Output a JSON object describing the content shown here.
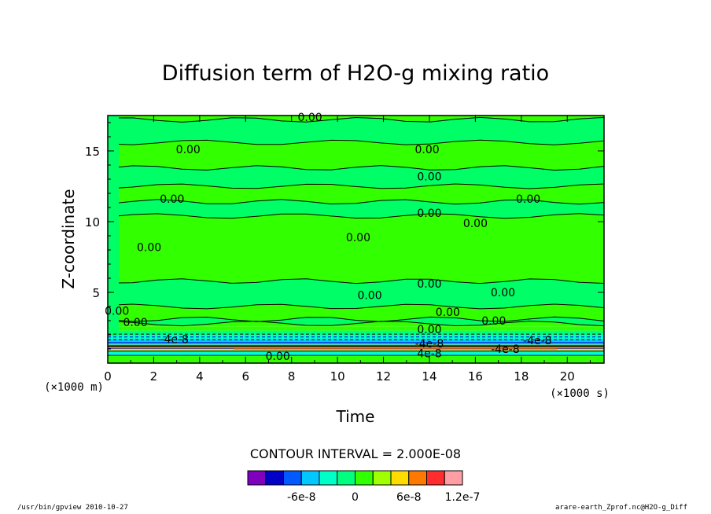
{
  "chart_data": {
    "type": "heatmap",
    "title": "Diffusion term of H2O-g mixing ratio",
    "xlabel": "Time",
    "ylabel": "Z-coordinate",
    "x_unit": "(×1000 s)",
    "y_unit": "(×1000 m)",
    "xlim": [
      0,
      21.6
    ],
    "ylim": [
      0,
      17.5
    ],
    "x_ticks": [
      "0",
      "2",
      "4",
      "6",
      "8",
      "10",
      "12",
      "14",
      "16",
      "18",
      "20"
    ],
    "x_tick_values": [
      0,
      2,
      4,
      6,
      8,
      10,
      12,
      14,
      16,
      18,
      20
    ],
    "y_ticks": [
      "5",
      "10",
      "15"
    ],
    "y_tick_values": [
      5,
      10,
      15
    ],
    "contour_interval_text": "CONTOUR INTERVAL = 2.000E-08",
    "contour_labels": [
      {
        "text": "0.00",
        "x": 8.8,
        "y": 17.4
      },
      {
        "text": "0.00",
        "x": 3.5,
        "y": 15.1
      },
      {
        "text": "0.00",
        "x": 13.9,
        "y": 15.1
      },
      {
        "text": "0.00",
        "x": 14.0,
        "y": 13.2
      },
      {
        "text": "0.00",
        "x": 2.8,
        "y": 11.6
      },
      {
        "text": "0.00",
        "x": 18.3,
        "y": 11.6
      },
      {
        "text": "0.00",
        "x": 14.0,
        "y": 10.6
      },
      {
        "text": "0.00",
        "x": 16.0,
        "y": 9.9
      },
      {
        "text": "0.00",
        "x": 10.9,
        "y": 8.9
      },
      {
        "text": "0.00",
        "x": 1.8,
        "y": 8.2
      },
      {
        "text": "0.00",
        "x": 14.0,
        "y": 5.6
      },
      {
        "text": "0.00",
        "x": 11.4,
        "y": 4.8
      },
      {
        "text": "0.00",
        "x": 17.2,
        "y": 5.0
      },
      {
        "text": "0.00",
        "x": 14.8,
        "y": 3.6
      },
      {
        "text": "0.00",
        "x": 16.8,
        "y": 3.0
      },
      {
        "text": "0.00",
        "x": 1.2,
        "y": 2.9
      },
      {
        "text": "0.00",
        "x": 14.0,
        "y": 2.4
      },
      {
        "text": "0.00",
        "x": 0.4,
        "y": 3.7
      },
      {
        "text": "-4e-8",
        "x": 2.9,
        "y": 1.7
      },
      {
        "text": "-4e-8",
        "x": 18.7,
        "y": 1.6
      },
      {
        "text": "-4e-8",
        "x": 14.0,
        "y": 1.4
      },
      {
        "text": "-4e-8",
        "x": 17.3,
        "y": 1.0
      },
      {
        "text": "4e-8",
        "x": 14.0,
        "y": 0.7
      },
      {
        "text": "0.00",
        "x": 7.4,
        "y": 0.5
      }
    ],
    "colorbar": {
      "colors": [
        "#7f00bf",
        "#0000c8",
        "#005aff",
        "#00c8ff",
        "#00ffc8",
        "#00ff7f",
        "#32ff00",
        "#a0ff00",
        "#ffdc00",
        "#ff7800",
        "#ff2d2d",
        "#ff9ea5"
      ],
      "tick_labels": [
        "-6e-8",
        "0",
        "6e-8",
        "1.2e-7"
      ],
      "tick_values": [
        -6e-08,
        0,
        6e-08,
        1.2e-07
      ],
      "vmin": -1.2e-07,
      "vmax": 1.2e-07
    },
    "field_bands": [
      {
        "y0": 0.0,
        "y1": 0.5,
        "value": 1e-08
      },
      {
        "y0": 0.5,
        "y1": 0.9,
        "value": -3e-08
      },
      {
        "y0": 0.9,
        "y1": 1.3,
        "value": 5e-08
      },
      {
        "y0": 1.3,
        "y1": 1.7,
        "value": -5e-08
      },
      {
        "y0": 1.7,
        "y1": 2.0,
        "value": -3e-08
      },
      {
        "y0": 2.0,
        "y1": 2.3,
        "value": -1e-08
      },
      {
        "y0": 2.3,
        "y1": 2.6,
        "value": 1e-08
      },
      {
        "y0": 2.6,
        "y1": 17.5,
        "value": 1e-08
      }
    ],
    "green_bands": [
      {
        "y0": 2.8,
        "y1": 3.1
      },
      {
        "y0": 4.0,
        "y1": 5.8
      },
      {
        "y0": 10.4,
        "y1": 11.4
      },
      {
        "y0": 12.5,
        "y1": 13.8
      },
      {
        "y0": 15.6,
        "y1": 17.2
      }
    ]
  },
  "footer": {
    "left": "/usr/bin/gpview   2010-10-27",
    "right": "arare-earth_Zprof.nc@H2O-g_Diff"
  }
}
